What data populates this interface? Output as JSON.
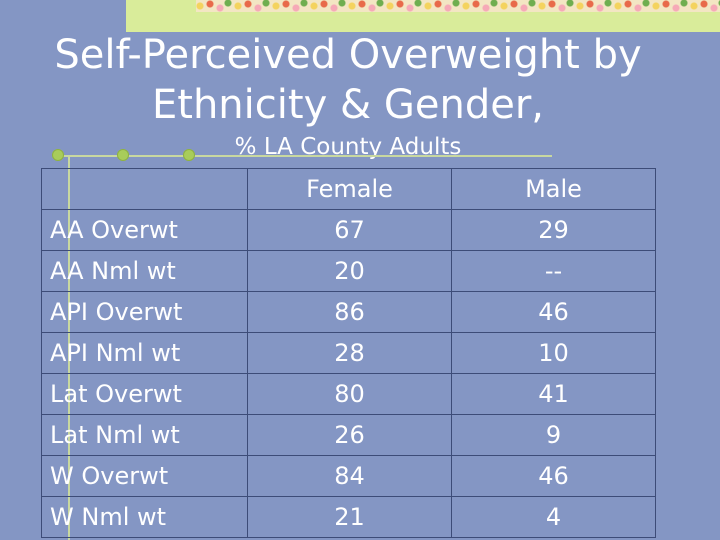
{
  "title": "Self-Perceived Overweight by Ethnicity & Gender,",
  "subtitle": "% LA County Adults",
  "table": {
    "header": [
      "",
      "Female",
      "Male"
    ],
    "rows": [
      [
        "AA Overwt",
        "67",
        "29"
      ],
      [
        "AA Nml wt",
        "20",
        "--"
      ],
      [
        "API Overwt",
        "86",
        "46"
      ],
      [
        "API Nml wt",
        "28",
        "10"
      ],
      [
        "Lat Overwt",
        "80",
        "41"
      ],
      [
        "Lat Nml wt",
        "26",
        "9"
      ],
      [
        "W Overwt",
        "84",
        "46"
      ],
      [
        "W Nml wt",
        "21",
        "4"
      ]
    ]
  },
  "colors": {
    "background": "#8496c4",
    "accent_band": "#d9ec9a",
    "text": "#ffffff",
    "grid": "#3d4c78"
  }
}
